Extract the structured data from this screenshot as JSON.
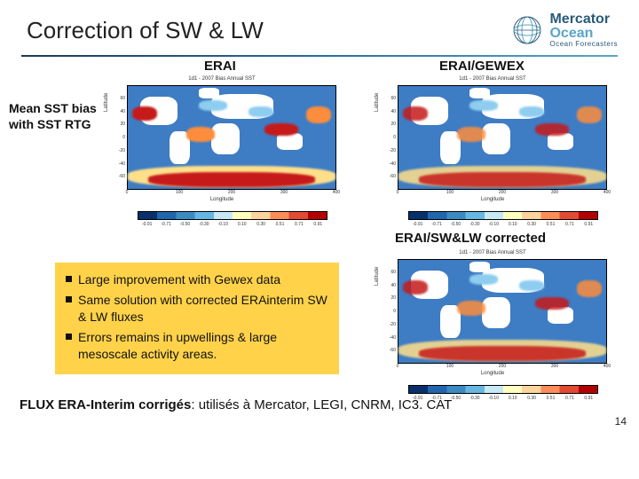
{
  "title": "Correction of SW & LW",
  "logo": {
    "line1": "Mercator",
    "line2": "Ocean",
    "tagline": "Ocean Forecasters"
  },
  "columns": {
    "erai": "ERAI",
    "gewex": "ERAI/GEWEX",
    "corrected": "ERAI/SW&LW corrected"
  },
  "side_note": "Mean SST bias with SST RTG",
  "maps_common": {
    "tiny_title": "1d1 - 2007 Bias Annual SST",
    "ylabel": "Latitude",
    "xlabel": "Longitude",
    "xlim": [
      0,
      400
    ],
    "ylim": [
      -80,
      80
    ],
    "xticks": [
      0,
      100,
      200,
      300,
      400
    ],
    "yticks": [
      -60,
      -40,
      -20,
      0,
      20,
      40,
      60
    ],
    "colorbar_range": [
      -1.0,
      1.0
    ],
    "colorbar_ticks": [
      "-0.91",
      "-0.71",
      "-0.50",
      "-0.30",
      "-0.10",
      "0.10",
      "0.30",
      "0.51",
      "0.71",
      "0.91"
    ],
    "colorbar_colors": [
      "#08306b",
      "#2166ac",
      "#3b8bc2",
      "#67b7e3",
      "#c7e9f5",
      "#ffffbf",
      "#fdd49e",
      "#fc8d59",
      "#e34a33",
      "#b30000"
    ],
    "ocean_colors": {
      "deep_neg": "#2b5ea8",
      "mid_neg": "#3e7cc4",
      "light_neg": "#8ecdf0",
      "light_pos": "#ffe08a",
      "mid_pos": "#fc8d3c",
      "deep_pos": "#c61a1a"
    },
    "land_color": "#ffffff",
    "border_color": "#000000",
    "tick_fontsize": 5,
    "label_fontsize": 6
  },
  "maps": [
    {
      "key": "erai",
      "ocean_bg": "#3e7cc4",
      "hot_opacity": 1.0
    },
    {
      "key": "gewex",
      "ocean_bg": "#3e7cc4",
      "hot_opacity": 0.85
    },
    {
      "key": "corrected",
      "ocean_bg": "#3e7cc4",
      "hot_opacity": 0.85
    }
  ],
  "bullets_bg": "#ffd24a",
  "bullets": [
    "Large improvement with Gewex data",
    "Same solution with corrected ERAinterim SW & LW fluxes",
    "Errors remains in upwellings & large mesoscale activity areas."
  ],
  "footer_bold": "FLUX ERA-Interim corrigés",
  "footer_rest": ": utilisés à Mercator, LEGI, CNRM, IC3. CAT",
  "page_number": "14"
}
